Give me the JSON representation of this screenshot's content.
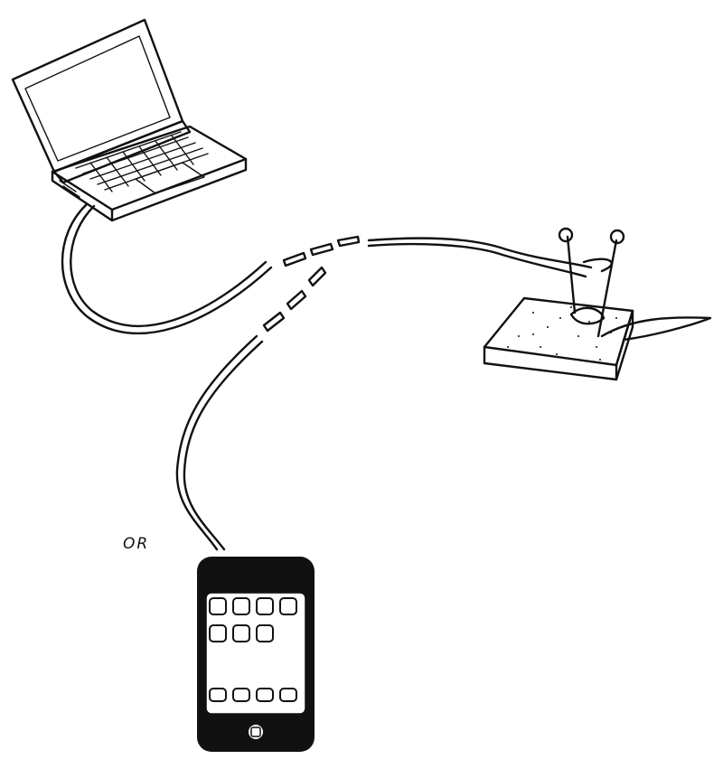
{
  "diagram": {
    "connector_text": "OR",
    "nodes": [
      {
        "name": "laptop",
        "icon": "laptop-icon"
      },
      {
        "name": "smartphone",
        "icon": "smartphone-icon"
      },
      {
        "name": "sponge-with-electrodes",
        "icon": "sensor-sponge-icon"
      }
    ],
    "colors": {
      "ink": "#111111",
      "screen": "#ffffff",
      "phone_body": "#111111"
    }
  }
}
